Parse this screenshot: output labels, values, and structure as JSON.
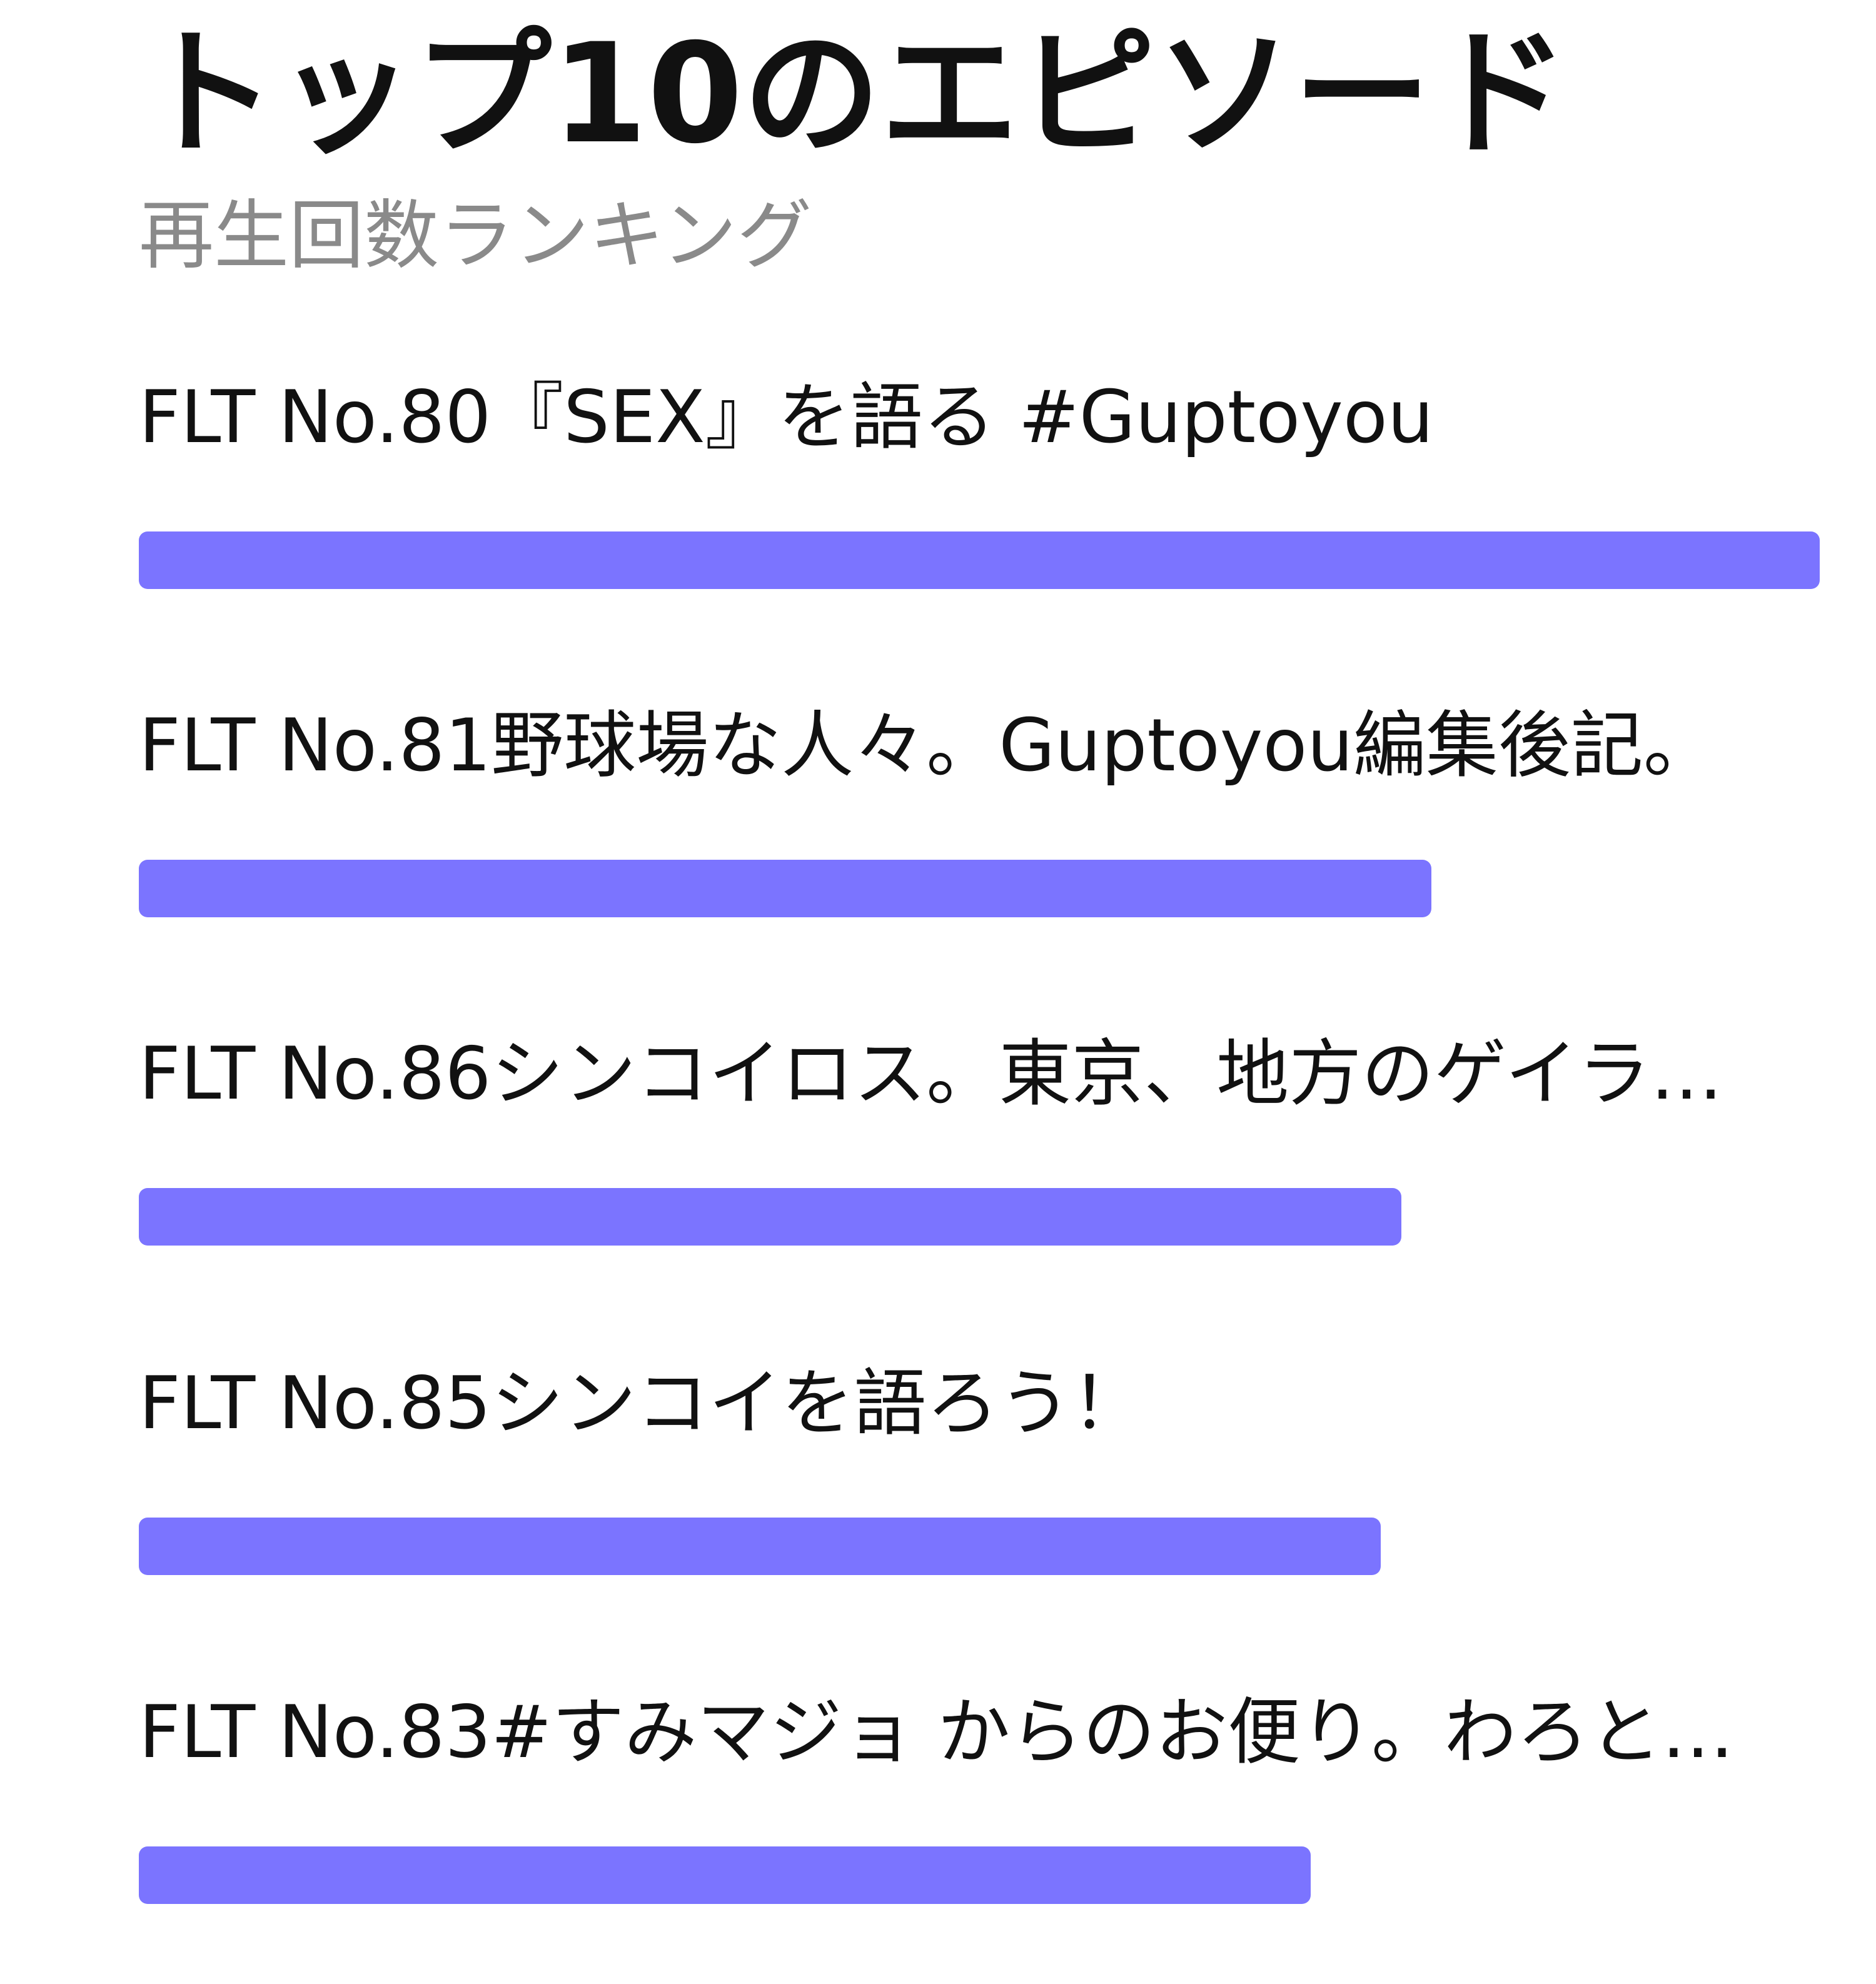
{
  "header": {
    "title": "トップ10のエピソード",
    "subtitle": "再生回数ランキング"
  },
  "bar_color": "#7b74ff",
  "episodes": [
    {
      "title": "FLT No.80『SEX』を語る #Guptoyou",
      "relative_plays": 1.0
    },
    {
      "title": "FLT No.81野球場な人々。Guptoyou編集後記。",
      "relative_plays": 0.769
    },
    {
      "title": "FLT No.86シンコイロス。東京、地方のゲイラ…",
      "relative_plays": 0.751
    },
    {
      "title": "FLT No.85シンコイを語ろう！",
      "relative_plays": 0.739
    },
    {
      "title": "FLT No.83#すみマジョ からのお便り。わろと…",
      "relative_plays": 0.697
    }
  ]
}
